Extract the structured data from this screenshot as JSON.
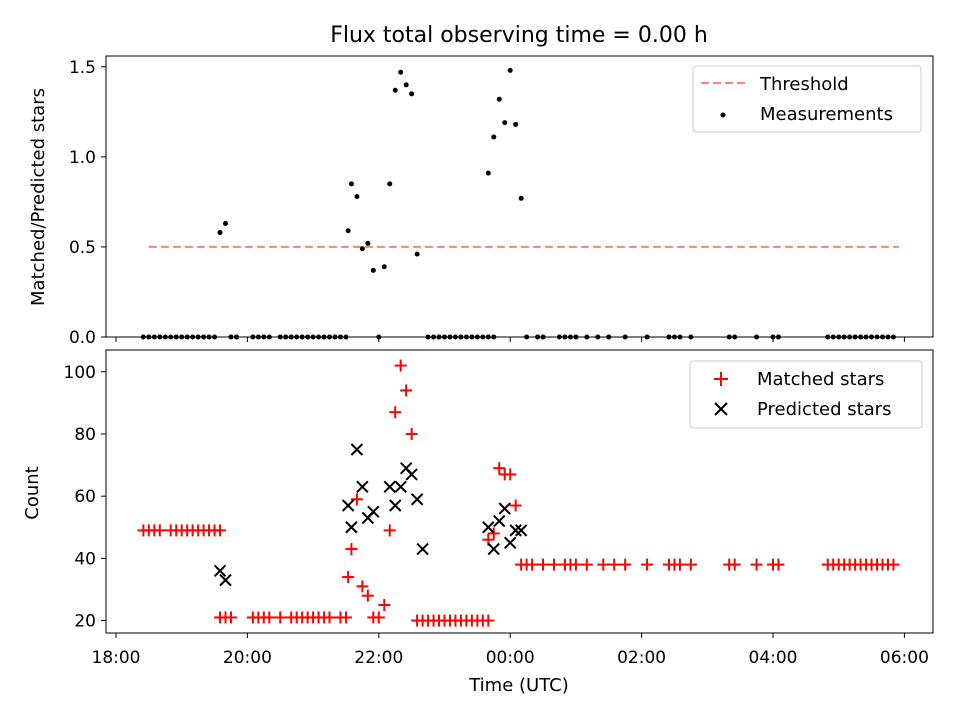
{
  "chart_data": [
    {
      "type": "scatter",
      "title": "Flux total observing time = 0.00 h",
      "ylabel": "Matched/Predicted stars",
      "ylim": [
        0,
        1.56
      ],
      "yticks": [
        0.0,
        0.5,
        1.0,
        1.5
      ],
      "ytick_labels": [
        "0.0",
        "0.5",
        "1.0",
        "1.5"
      ],
      "legend_position": "upper right",
      "threshold": {
        "name": "Threshold",
        "value": 0.5,
        "x_range": [
          "18:30",
          "05:55"
        ],
        "color": "#ff7f7f"
      },
      "series": [
        {
          "name": "Measurements",
          "color": "#000000",
          "marker": "dot",
          "x": [
            "18:25",
            "18:30",
            "18:35",
            "18:40",
            "18:45",
            "18:50",
            "18:55",
            "19:00",
            "19:05",
            "19:10",
            "19:15",
            "19:20",
            "19:25",
            "19:30",
            "19:35",
            "19:40",
            "19:45",
            "19:50",
            "20:05",
            "20:10",
            "20:15",
            "20:20",
            "20:30",
            "20:35",
            "20:40",
            "20:45",
            "20:50",
            "20:55",
            "21:00",
            "21:05",
            "21:10",
            "21:15",
            "21:20",
            "21:25",
            "21:30",
            "21:32",
            "21:35",
            "21:40",
            "21:45",
            "21:50",
            "21:55",
            "22:00",
            "22:05",
            "22:10",
            "22:15",
            "22:20",
            "22:25",
            "22:30",
            "22:35",
            "22:45",
            "22:50",
            "22:55",
            "23:00",
            "23:05",
            "23:10",
            "23:15",
            "23:20",
            "23:25",
            "23:30",
            "23:35",
            "23:40",
            "23:45",
            "23:40",
            "23:45",
            "23:50",
            "23:55",
            "00:00",
            "00:05",
            "00:10",
            "00:15",
            "00:25",
            "00:30",
            "00:45",
            "00:50",
            "00:55",
            "01:00",
            "01:10",
            "01:20",
            "01:30",
            "01:45",
            "02:05",
            "02:25",
            "02:30",
            "02:35",
            "02:45",
            "03:20",
            "03:25",
            "03:45",
            "04:00",
            "04:05",
            "04:50",
            "04:55",
            "05:00",
            "05:05",
            "05:10",
            "05:15",
            "05:20",
            "05:25",
            "05:30",
            "05:35",
            "05:40",
            "05:45",
            "05:50"
          ],
          "y": [
            0,
            0,
            0,
            0,
            0,
            0,
            0,
            0,
            0,
            0,
            0,
            0,
            0,
            0,
            0.58,
            0.63,
            0,
            0,
            0,
            0,
            0,
            0,
            0,
            0,
            0,
            0,
            0,
            0,
            0,
            0,
            0,
            0,
            0,
            0,
            0,
            0.59,
            0.85,
            0.78,
            0.49,
            0.52,
            0.37,
            0,
            0.39,
            0.85,
            1.37,
            1.47,
            1.4,
            1.35,
            0.46,
            0,
            0,
            0,
            0,
            0,
            0,
            0,
            0,
            0,
            0,
            0,
            0,
            0,
            0.91,
            1.11,
            1.32,
            1.19,
            1.48,
            1.18,
            0.77,
            0,
            0,
            0,
            0,
            0,
            0,
            0,
            0,
            0,
            0,
            0,
            0,
            0,
            0,
            0,
            0,
            0,
            0,
            0,
            0,
            0,
            0,
            0,
            0,
            0,
            0,
            0,
            0,
            0,
            0,
            0,
            0,
            0,
            0
          ]
        }
      ]
    },
    {
      "type": "scatter",
      "xlabel": "Time (UTC)",
      "ylabel": "Count",
      "ylim": [
        16,
        107
      ],
      "yticks": [
        20,
        40,
        60,
        80,
        100
      ],
      "ytick_labels": [
        "20",
        "40",
        "60",
        "80",
        "100"
      ],
      "xticks": [
        "18:00",
        "20:00",
        "22:00",
        "00:00",
        "02:00",
        "04:00",
        "06:00"
      ],
      "legend_position": "upper right",
      "series": [
        {
          "name": "Matched stars",
          "color": "#ff0000",
          "marker": "plus",
          "x": [
            "18:25",
            "18:30",
            "18:35",
            "18:40",
            "18:50",
            "18:55",
            "19:00",
            "19:05",
            "19:10",
            "19:15",
            "19:20",
            "19:25",
            "19:30",
            "19:35",
            "19:35",
            "19:40",
            "19:45",
            "20:05",
            "20:10",
            "20:15",
            "20:20",
            "20:30",
            "20:40",
            "20:45",
            "20:50",
            "20:55",
            "21:00",
            "21:05",
            "21:10",
            "21:15",
            "21:25",
            "21:30",
            "21:32",
            "21:35",
            "21:40",
            "21:45",
            "21:50",
            "21:55",
            "22:00",
            "22:05",
            "22:10",
            "22:15",
            "22:20",
            "22:25",
            "22:30",
            "22:35",
            "22:40",
            "22:45",
            "22:50",
            "22:55",
            "23:00",
            "23:05",
            "23:10",
            "23:15",
            "23:20",
            "23:25",
            "23:30",
            "23:35",
            "23:40",
            "23:40",
            "23:45",
            "23:50",
            "23:55",
            "00:00",
            "00:05",
            "00:10",
            "00:15",
            "00:20",
            "00:30",
            "00:40",
            "00:50",
            "00:55",
            "01:00",
            "01:10",
            "01:25",
            "01:35",
            "01:45",
            "02:05",
            "02:25",
            "02:30",
            "02:35",
            "02:45",
            "03:20",
            "03:25",
            "03:45",
            "04:00",
            "04:05",
            "04:50",
            "04:55",
            "05:00",
            "05:05",
            "05:10",
            "05:15",
            "05:20",
            "05:25",
            "05:30",
            "05:35",
            "05:40",
            "05:45",
            "05:50"
          ],
          "y": [
            49,
            49,
            49,
            49,
            49,
            49,
            49,
            49,
            49,
            49,
            49,
            49,
            49,
            49,
            21,
            21,
            21,
            21,
            21,
            21,
            21,
            21,
            21,
            21,
            21,
            21,
            21,
            21,
            21,
            21,
            21,
            21,
            34,
            43,
            59,
            31,
            28,
            21,
            21,
            25,
            49,
            87,
            102,
            94,
            80,
            20,
            20,
            20,
            20,
            20,
            20,
            20,
            20,
            20,
            20,
            20,
            20,
            20,
            20,
            46,
            48,
            69,
            67,
            67,
            57,
            38,
            38,
            38,
            38,
            38,
            38,
            38,
            38,
            38,
            38,
            38,
            38,
            38,
            38,
            38,
            38,
            38,
            38,
            38,
            38,
            38,
            38,
            38,
            38,
            38,
            38,
            38,
            38,
            38,
            38,
            38,
            38,
            38,
            38,
            38
          ]
        },
        {
          "name": "Predicted stars",
          "color": "#000000",
          "marker": "x",
          "x": [
            "19:35",
            "19:40",
            "21:32",
            "21:35",
            "21:40",
            "21:45",
            "21:50",
            "21:55",
            "22:10",
            "22:15",
            "22:20",
            "22:25",
            "22:30",
            "22:35",
            "22:40",
            "23:40",
            "23:45",
            "23:50",
            "23:55",
            "00:00",
            "00:05",
            "00:10"
          ],
          "y": [
            36,
            33,
            57,
            50,
            75,
            63,
            53,
            55,
            63,
            57,
            63,
            69,
            67,
            59,
            43,
            50,
            43,
            52,
            56,
            45,
            49,
            49
          ]
        }
      ]
    }
  ]
}
